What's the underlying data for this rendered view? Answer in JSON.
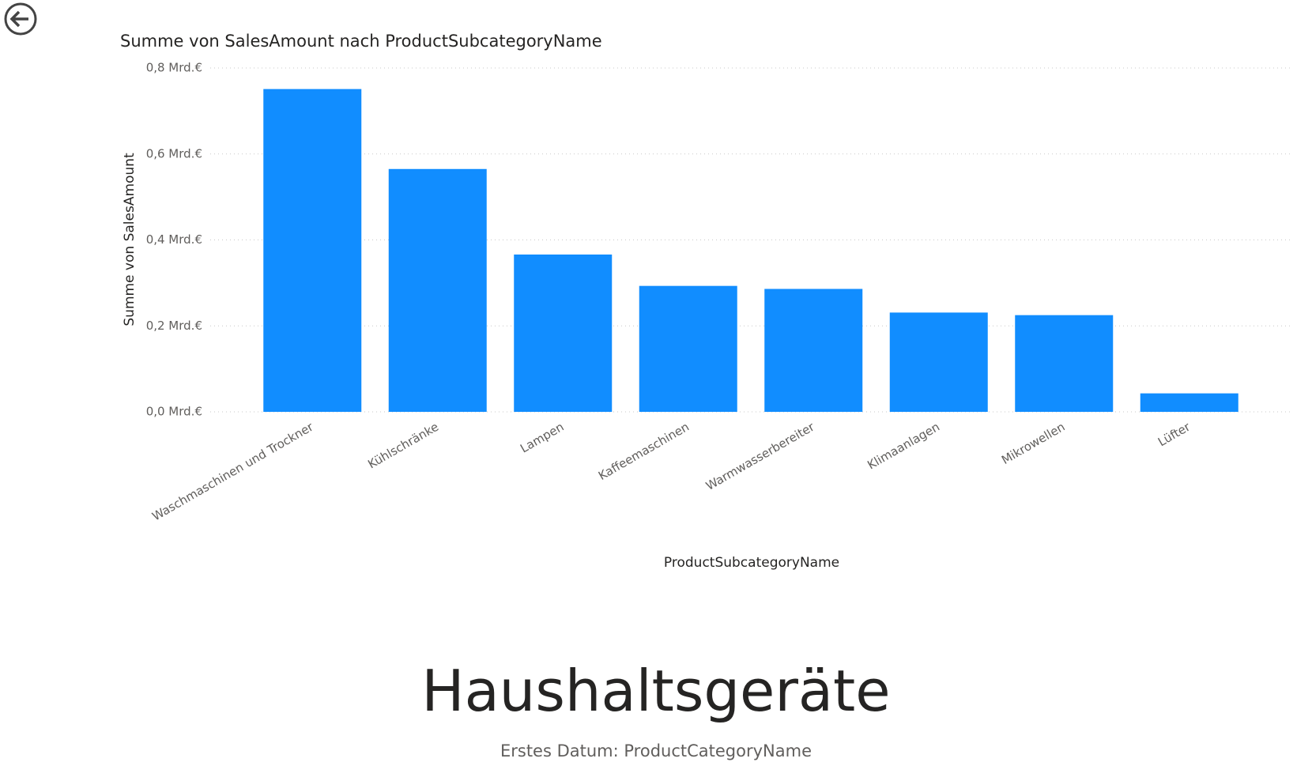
{
  "chart_data": {
    "type": "bar",
    "title": "Summe von SalesAmount nach ProductSubcategoryName",
    "x_label": "ProductSubcategoryName",
    "y_label": "Summe von SalesAmount",
    "categories": [
      "Waschmaschinen und Trockner",
      "Kühlschränke",
      "Lampen",
      "Kaffeemaschinen",
      "Warmwasserbereiter",
      "Klimaanlagen",
      "Mikrowellen",
      "Lüfter"
    ],
    "values": [
      0.751,
      0.565,
      0.366,
      0.293,
      0.286,
      0.231,
      0.225,
      0.043
    ],
    "color": "#118dff",
    "ylim": [
      0,
      0.8
    ],
    "yticks": [
      {
        "value": 0,
        "label": "0,0 Mrd.€"
      },
      {
        "value": 0.2,
        "label": "0,2 Mrd.€"
      },
      {
        "value": 0.4,
        "label": "0,4 Mrd.€"
      },
      {
        "value": 0.6,
        "label": "0,6 Mrd.€"
      },
      {
        "value": 0.8,
        "label": "0,8 Mrd.€"
      }
    ],
    "grid": true
  },
  "card": {
    "value": "Haushaltsgeräte",
    "label": "Erstes Datum: ProductCategoryName"
  }
}
